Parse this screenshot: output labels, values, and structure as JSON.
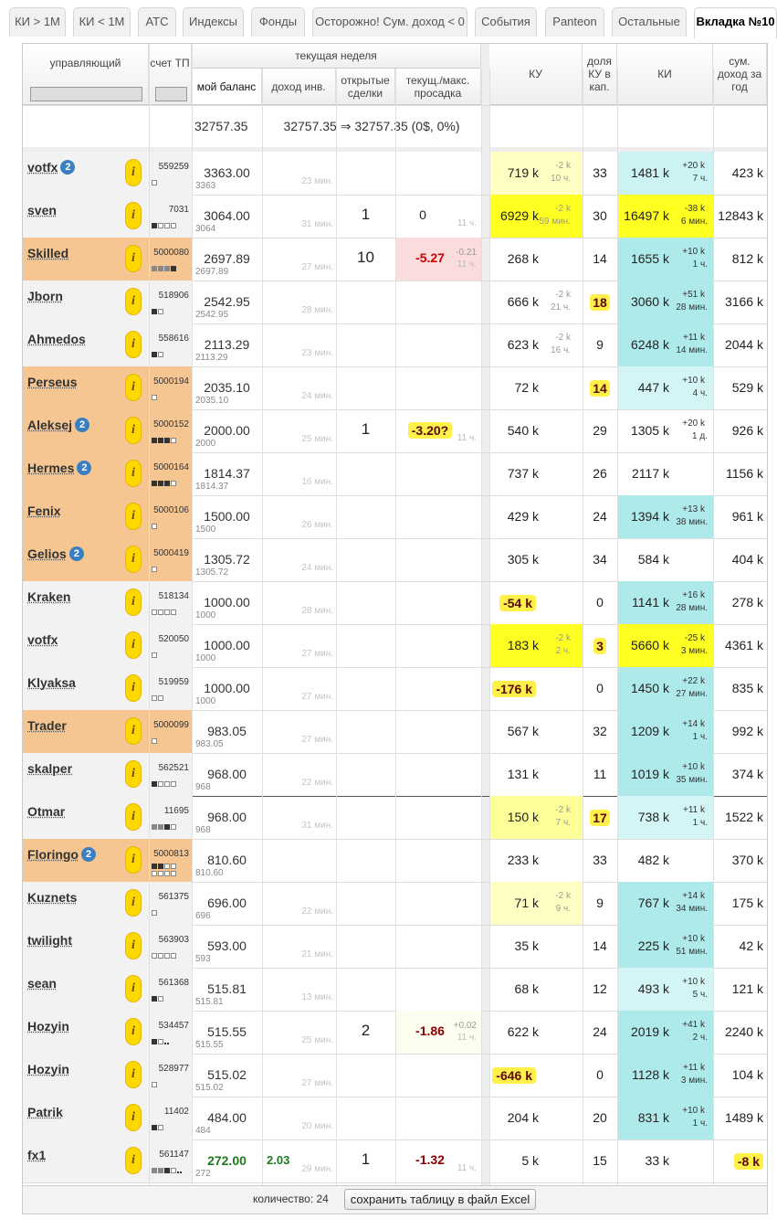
{
  "tabs": [
    "КИ > 1М",
    "КИ < 1М",
    "АТС",
    "Индексы",
    "Фонды",
    "Осторожно! Сум. доход < 0",
    "События",
    "Panteon",
    "Остальные",
    "Вкладка №10"
  ],
  "active_tab": 9,
  "header": {
    "manager": "управляющий",
    "account": "счет ТП",
    "week": "текущая неделя",
    "balance": "мой баланс",
    "income": "доход инв.",
    "deals": "открытые сделки",
    "drawdown": "текущ./макс. просадка",
    "ku": "КУ",
    "share": "доля КУ в кап.",
    "ki": "КИ",
    "sum": "сум. доход за год"
  },
  "summary": {
    "balance": "32757.35",
    "income": "32757.35 ⇒ 32757.35 (0$, 0%)"
  },
  "info_icon": "i",
  "rows": [
    {
      "name": "votfx",
      "badge": "2",
      "account": "559259",
      "balance": "3363.00",
      "balance_small": "3363",
      "time": "23 мин.",
      "ku": "719 k",
      "ku_change": "-2 k",
      "ku_time": "10 ч.",
      "ku_bg": "#ffffc4",
      "share": "33",
      "ki": "1481 k",
      "ki_change": "+20 k",
      "ki_time": "7 ч.",
      "ki_bg": "#ccf3f3",
      "sum": "423 k"
    },
    {
      "name": "sven",
      "account": "7031",
      "balance": "3064.00",
      "balance_small": "3064",
      "time": "31 мин.",
      "open": "1",
      "drawdown": "0",
      "drawdown_time": "11 ч.",
      "ku": "6929 k",
      "ku_change": "-2 k",
      "ku_time": "59 мин.",
      "ku_bg": "#ffff22",
      "share": "30",
      "ki": "16497 k",
      "ki_change": "-38 k",
      "ki_time": "6 мин.",
      "ki_bg": "#ffff22",
      "sum": "12843 k"
    },
    {
      "name": "Skilled",
      "highlight": true,
      "account": "5000080",
      "balance": "2697.89",
      "balance_small": "2697.89",
      "time": "27 мин.",
      "open": "10",
      "drawdown": "-5.27",
      "drawdown_change": "-0.21",
      "drawdown_time": "11 ч.",
      "dd_bg": "#fbdcdc",
      "dd_color": "#cc0000",
      "ku": "268 k",
      "share": "14",
      "ki": "1655 k",
      "ki_change": "+10 k",
      "ki_time": "1 ч.",
      "ki_bg": "#aeeaea",
      "sum": "812 k"
    },
    {
      "name": "Jborn",
      "account": "518906",
      "balance": "2542.95",
      "balance_small": "2542.95",
      "time": "28 мин.",
      "ku": "666 k",
      "ku_change": "-2 k",
      "ku_time": "21 ч.",
      "share": "18",
      "share_badge": true,
      "ki": "3060 k",
      "ki_change": "+51 k",
      "ki_time": "28 мин.",
      "ki_bg": "#aeeaea",
      "sum": "3166 k"
    },
    {
      "name": "Ahmedos",
      "account": "558616",
      "balance": "2113.29",
      "balance_small": "2113.29",
      "time": "23 мин.",
      "ku": "623 k",
      "ku_change": "-2 k",
      "ku_time": "16 ч.",
      "share": "9",
      "ki": "6248 k",
      "ki_change": "+11 k",
      "ki_time": "14 мин.",
      "ki_bg": "#aeeaea",
      "sum": "2044 k"
    },
    {
      "name": "Perseus",
      "highlight": true,
      "account": "5000194",
      "balance": "2035.10",
      "balance_small": "2035.10",
      "time": "24 мин.",
      "ku": "72 k",
      "share": "14",
      "share_badge": true,
      "ki": "447 k",
      "ki_change": "+10 k",
      "ki_time": "4 ч.",
      "ki_bg": "#d4f5f5",
      "sum": "529 k"
    },
    {
      "name": "Aleksej",
      "badge": "2",
      "highlight": true,
      "account": "5000152",
      "balance": "2000.00",
      "balance_small": "2000",
      "time": "25 мин.",
      "open": "1",
      "drawdown": "-3.20?",
      "dd_badge": true,
      "drawdown_time": "11 ч.",
      "ku": "540 k",
      "share": "29",
      "ki": "1305 k",
      "ki_change": "+20 k",
      "ki_time": "1 д.",
      "sum": "926 k"
    },
    {
      "name": "Hermes",
      "badge": "2",
      "highlight": true,
      "account": "5000164",
      "balance": "1814.37",
      "balance_small": "1814.37",
      "time": "16 мин.",
      "ku": "737 k",
      "share": "26",
      "ki": "2117 k",
      "sum": "1156 k"
    },
    {
      "name": "Fenix",
      "highlight": true,
      "account": "5000106",
      "balance": "1500.00",
      "balance_small": "1500",
      "time": "26 мин.",
      "ku": "429 k",
      "share": "24",
      "ki": "1394 k",
      "ki_change": "+13 k",
      "ki_time": "38 мин.",
      "ki_bg": "#aeeaea",
      "sum": "961 k"
    },
    {
      "name": "Gelios",
      "badge": "2",
      "highlight": true,
      "account": "5000419",
      "balance": "1305.72",
      "balance_small": "1305.72",
      "time": "24 мин.",
      "ku": "305 k",
      "share": "34",
      "ki": "584 k",
      "sum": "404 k"
    },
    {
      "name": "Kraken",
      "account": "518134",
      "balance": "1000.00",
      "balance_small": "1000",
      "time": "28 мин.",
      "ku": "-54 k",
      "ku_badge": true,
      "share": "0",
      "ki": "1141 k",
      "ki_change": "+16 k",
      "ki_time": "28 мин.",
      "ki_bg": "#aeeaea",
      "sum": "278 k"
    },
    {
      "name": "votfx",
      "account": "520050",
      "balance": "1000.00",
      "balance_small": "1000",
      "time": "27 мин.",
      "ku": "183 k",
      "ku_change": "-2 k",
      "ku_time": "2 ч.",
      "ku_bg": "#ffff22",
      "share": "3",
      "share_badge": true,
      "ki": "5660 k",
      "ki_change": "-25 k",
      "ki_time": "3 мин.",
      "ki_bg": "#ffff22",
      "sum": "4361 k"
    },
    {
      "name": "Klyaksa",
      "account": "519959",
      "balance": "1000.00",
      "balance_small": "1000",
      "time": "27 мин.",
      "ku": "-176 k",
      "ku_badge": true,
      "share": "0",
      "ki": "1450 k",
      "ki_change": "+22 k",
      "ki_time": "27 мин.",
      "ki_bg": "#aeeaea",
      "sum": "835 k"
    },
    {
      "name": "Trader",
      "highlight": true,
      "account": "5000099",
      "balance": "983.05",
      "balance_small": "983.05",
      "time": "27 мин.",
      "ku": "567 k",
      "share": "32",
      "ki": "1209 k",
      "ki_change": "+14 k",
      "ki_time": "1 ч.",
      "ki_bg": "#aeeaea",
      "sum": "992 k"
    },
    {
      "name": "skalper",
      "account": "562521",
      "balance": "968.00",
      "balance_small": "968",
      "time": "22 мин.",
      "ku": "131 k",
      "share": "11",
      "ki": "1019 k",
      "ki_change": "+10 k",
      "ki_time": "35 мин.",
      "ki_bg": "#aeeaea",
      "sum": "374 k"
    },
    {
      "name": "Otmar",
      "account": "11695",
      "balance": "968.00",
      "balance_small": "968",
      "time": "31 мин.",
      "ku": "150 k",
      "ku_change": "-2 k",
      "ku_time": "7 ч.",
      "ku_bg": "#ffff9a",
      "share": "17",
      "share_badge": true,
      "ki": "738 k",
      "ki_change": "+11 k",
      "ki_time": "1 ч.",
      "ki_bg": "#d4f5f5",
      "sum": "1522 k"
    },
    {
      "name": "Floringo",
      "badge": "2",
      "highlight": true,
      "account": "5000813",
      "balance": "810.60",
      "balance_small": "810.60",
      "ku": "233 k",
      "share": "33",
      "ki": "482 k",
      "sum": "370 k"
    },
    {
      "name": "Kuznets",
      "account": "561375",
      "balance": "696.00",
      "balance_small": "696",
      "time": "22 мин.",
      "ku": "71 k",
      "ku_change": "-2 k",
      "ku_time": "9 ч.",
      "ku_bg": "#ffffc4",
      "share": "9",
      "ki": "767 k",
      "ki_change": "+14 k",
      "ki_time": "34 мин.",
      "ki_bg": "#aeeaea",
      "sum": "175 k"
    },
    {
      "name": "twilight",
      "account": "563903",
      "balance": "593.00",
      "balance_small": "593",
      "time": "21 мин.",
      "ku": "35 k",
      "share": "14",
      "ki": "225 k",
      "ki_change": "+10 k",
      "ki_time": "51 мин.",
      "ki_bg": "#aeeaea",
      "sum": "42 k"
    },
    {
      "name": "sean",
      "account": "561368",
      "balance": "515.81",
      "balance_small": "515.81",
      "time": "13 мин.",
      "ku": "68 k",
      "share": "12",
      "ki": "493 k",
      "ki_change": "+10 k",
      "ki_time": "5 ч.",
      "ki_bg": "#d4f5f5",
      "sum": "121 k"
    },
    {
      "name": "Hozyin",
      "account": "534457",
      "balance": "515.55",
      "balance_small": "515.55",
      "time": "25 мин.",
      "open": "2",
      "drawdown": "-1.86",
      "drawdown_change": "+0.02",
      "drawdown_time": "11 ч.",
      "dd_bg": "#fdfdf0",
      "dd_color": "#8b0000",
      "ku": "622 k",
      "share": "24",
      "ki": "2019 k",
      "ki_change": "+41 k",
      "ki_time": "2 ч.",
      "ki_bg": "#aeeaea",
      "sum": "2240 k"
    },
    {
      "name": "Hozyin",
      "account": "528977",
      "balance": "515.02",
      "balance_small": "515.02",
      "time": "27 мин.",
      "ku": "-646 k",
      "ku_badge": true,
      "share": "0",
      "ki": "1128 k",
      "ki_change": "+11 k",
      "ki_time": "3 мин.",
      "ki_bg": "#aeeaea",
      "sum": "104 k"
    },
    {
      "name": "Patrik",
      "account": "11402",
      "balance": "484.00",
      "balance_small": "484",
      "time": "20 мин.",
      "ku": "204 k",
      "share": "20",
      "ki": "831 k",
      "ki_change": "+10 k",
      "ki_time": "1 ч.",
      "ki_bg": "#aeeaea",
      "sum": "1489 k"
    },
    {
      "name": "fx1",
      "account": "561147",
      "balance": "272.00",
      "balance_small": "272",
      "balance_color": "#1d7a1d",
      "income": "2.03",
      "time": "29 мин.",
      "open": "1",
      "drawdown": "-1.32",
      "drawdown_time": "11 ч.",
      "dd_color": "#8b0000",
      "ku": "5 k",
      "share": "15",
      "ki": "33 k",
      "sum": "-8 k",
      "sum_badge": true
    }
  ],
  "footer": {
    "count": "количество: 24",
    "button": "сохранить таблицу в файл Excel"
  }
}
